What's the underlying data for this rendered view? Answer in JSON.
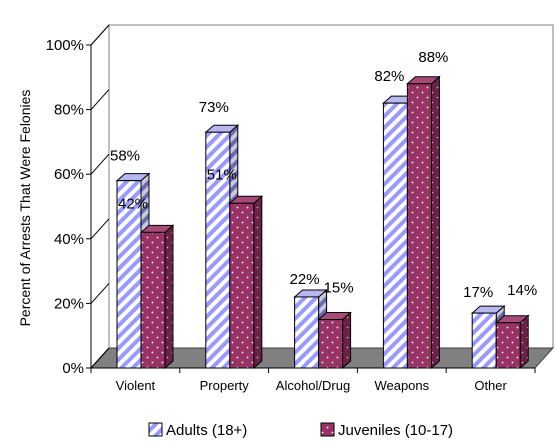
{
  "chart_data": {
    "type": "bar",
    "title": "",
    "xlabel": "",
    "ylabel": "Percent of Arrests That Were Felonies",
    "ylim": [
      0,
      100
    ],
    "yticks": [
      "0%",
      "20%",
      "40%",
      "60%",
      "80%",
      "100%"
    ],
    "categories": [
      "Violent",
      "Property",
      "Alcohol/Drug",
      "Weapons",
      "Other"
    ],
    "series": [
      {
        "name": "Adults (18+)",
        "values": [
          58,
          73,
          22,
          82,
          17
        ],
        "labels": [
          "58%",
          "73%",
          "22%",
          "82%",
          "17%"
        ],
        "color": "#9999ff",
        "pattern": "diagonal-stripes"
      },
      {
        "name": "Juveniles (10-17)",
        "values": [
          42,
          51,
          15,
          88,
          14
        ],
        "labels": [
          "42%",
          "51%",
          "15%",
          "88%",
          "14%"
        ],
        "color": "#993366",
        "pattern": "dots"
      }
    ],
    "legend_position": "bottom",
    "grid": false,
    "chart_style": "3d"
  }
}
